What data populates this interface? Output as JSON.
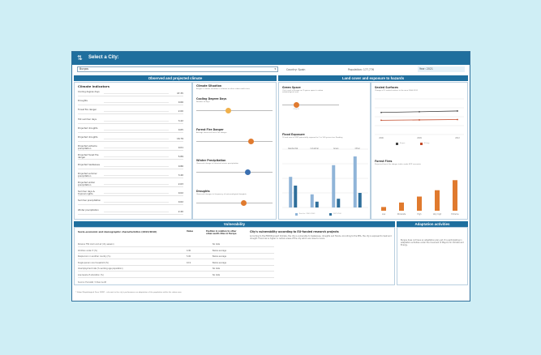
{
  "header": {
    "logo_glyph": "⇅",
    "title": "Select a City:"
  },
  "filters": {
    "city_value": "Burgos",
    "city_chevron": "▾",
    "country_label": "Country: Spain",
    "population_label": "Population: 177,776",
    "year_value": "Year: 2021"
  },
  "sections": {
    "observed_title": "Observed and projected climate",
    "land_title": "Land cover and exposure to hazards",
    "vuln_title": "Vulnerability",
    "adapt_title": "Adaptation activities"
  },
  "climate_indicators": {
    "title": "Climate indicators",
    "rows": [
      {
        "label": "Cooling degree days",
        "value": "47.35"
      },
      {
        "label": "Droughts",
        "value": "0.66"
      },
      {
        "label": "Forest fire danger",
        "value": "2.00"
      },
      {
        "label": "Hot summer days",
        "value": "3.42"
      },
      {
        "label": "Projected droughts",
        "value": "0.65"
      },
      {
        "label": "Projected droughts",
        "value": "16.79"
      },
      {
        "label": "Projected extreme precipitation",
        "value": "0.01"
      },
      {
        "label": "Projected forest fire danger",
        "value": "5.89"
      },
      {
        "label": "Projected heatwaves",
        "value": "0.86"
      },
      {
        "label": "Projected summer precipitation",
        "value": "3.40"
      },
      {
        "label": "Projected winter precipitation",
        "value": "2.63"
      },
      {
        "label": "Summer days & tropical nights",
        "value": "0.02"
      },
      {
        "label": "Summer precipitation",
        "value": "0.62"
      },
      {
        "label": "Winter precipitation",
        "value": "2.40"
      }
    ]
  },
  "climate_situation": {
    "title": "Climate Situation",
    "desc": "Burgos's climate situation in relation to other urban audit cities",
    "blocks": [
      {
        "title": "Cooling Degree Days",
        "desc": "Number of days",
        "pos": 0.42,
        "color": "#f0b04a"
      },
      {
        "title": "Forest Fire Danger",
        "desc": "Average observed forest fire danger",
        "pos": 0.72,
        "color": "#e07a2e"
      },
      {
        "title": "Winter Precipitation",
        "desc": "Observed change in historical winter precipitation",
        "pos": 0.68,
        "color": "#3a6fb0"
      },
      {
        "title": "Droughts",
        "desc": "Observed changes in frequency of meteorological droughts",
        "pos": 0.62,
        "color": "#e07a2e"
      }
    ],
    "scale_low": "Low",
    "scale_high": "High"
  },
  "green_space": {
    "title": "Green Space",
    "desc": "City's rank in Europe on % green space in urban morphological zone",
    "pos": 0.25,
    "marker": "27.60 %",
    "color": "#e07a2e"
  },
  "flood_exposure": {
    "title": "Flood Exposure",
    "desc": "% land area in UMZ potentially exposed to 1 in 100 years river flooding",
    "legend": [
      "Baseline (1961-1990)",
      "2071-2100"
    ],
    "categories": [
      "Residential",
      "Industrial",
      "Green",
      "Other"
    ],
    "baseline": [
      42,
      18,
      58,
      70
    ],
    "future": [
      30,
      8,
      12,
      20
    ]
  },
  "sealed_surfaces": {
    "title": "Sealed Surfaces",
    "desc": "Change of % sealed surface in the area 2006-2012",
    "years": [
      "2006",
      "2009",
      "2012"
    ],
    "burgos": [
      62,
      64,
      66
    ],
    "eu": [
      40,
      41,
      42
    ],
    "legend": [
      "Burgos",
      "EU avg"
    ]
  },
  "forest_fires": {
    "title": "Forest Fires",
    "desc": "Projected forest fire danger index under RCP scenarios",
    "categories": [
      "Low",
      "Moderate",
      "High",
      "Very high",
      "Extreme"
    ],
    "values": [
      10,
      22,
      38,
      55,
      82
    ]
  },
  "vulnerability": {
    "table_title": "Socio-economic and demographic characteristics (2014/2016)",
    "col_value": "Value",
    "col_position": "Position in relation to other urban audit cities in Europe",
    "rows": [
      {
        "label": "Persons 750 room and air (dry season)",
        "value": "",
        "pos": "No data"
      },
      {
        "label": "Children under 5 (%)",
        "value": "4.90",
        "pos": "Below average"
      },
      {
        "label": "People born in another country (%)",
        "value": "5.00",
        "pos": "Below average"
      },
      {
        "label": "Single person one household (%)",
        "value": "10.9",
        "pos": "Below average"
      },
      {
        "label": "Unemployment rate (% working age population)",
        "value": "",
        "pos": "No data"
      },
      {
        "label": "Low levels of education (%)",
        "value": "",
        "pos": "No data"
      }
    ],
    "eu_title": "City's vulnerability according to EU-funded research projects",
    "eu_text": "According to the ESPON project Climate, the city is vulnerable to heatwaves, droughts and floods. According to the EEA, the city is exposed to heat and drought. Flood risk is higher in certain areas of the city which are close to rivers.",
    "source": "Source: Eurostat / Urban Audit"
  },
  "adaptation": {
    "text": "Burgos does not have an adaptation plan yet. It is participating in adaptation activities under the Covenant of Mayors for Climate and Energy."
  },
  "footnote": "* Urban Morphological Zone (UMZ) – relevant to the city's performance as adaptation of the population within the urban area."
}
